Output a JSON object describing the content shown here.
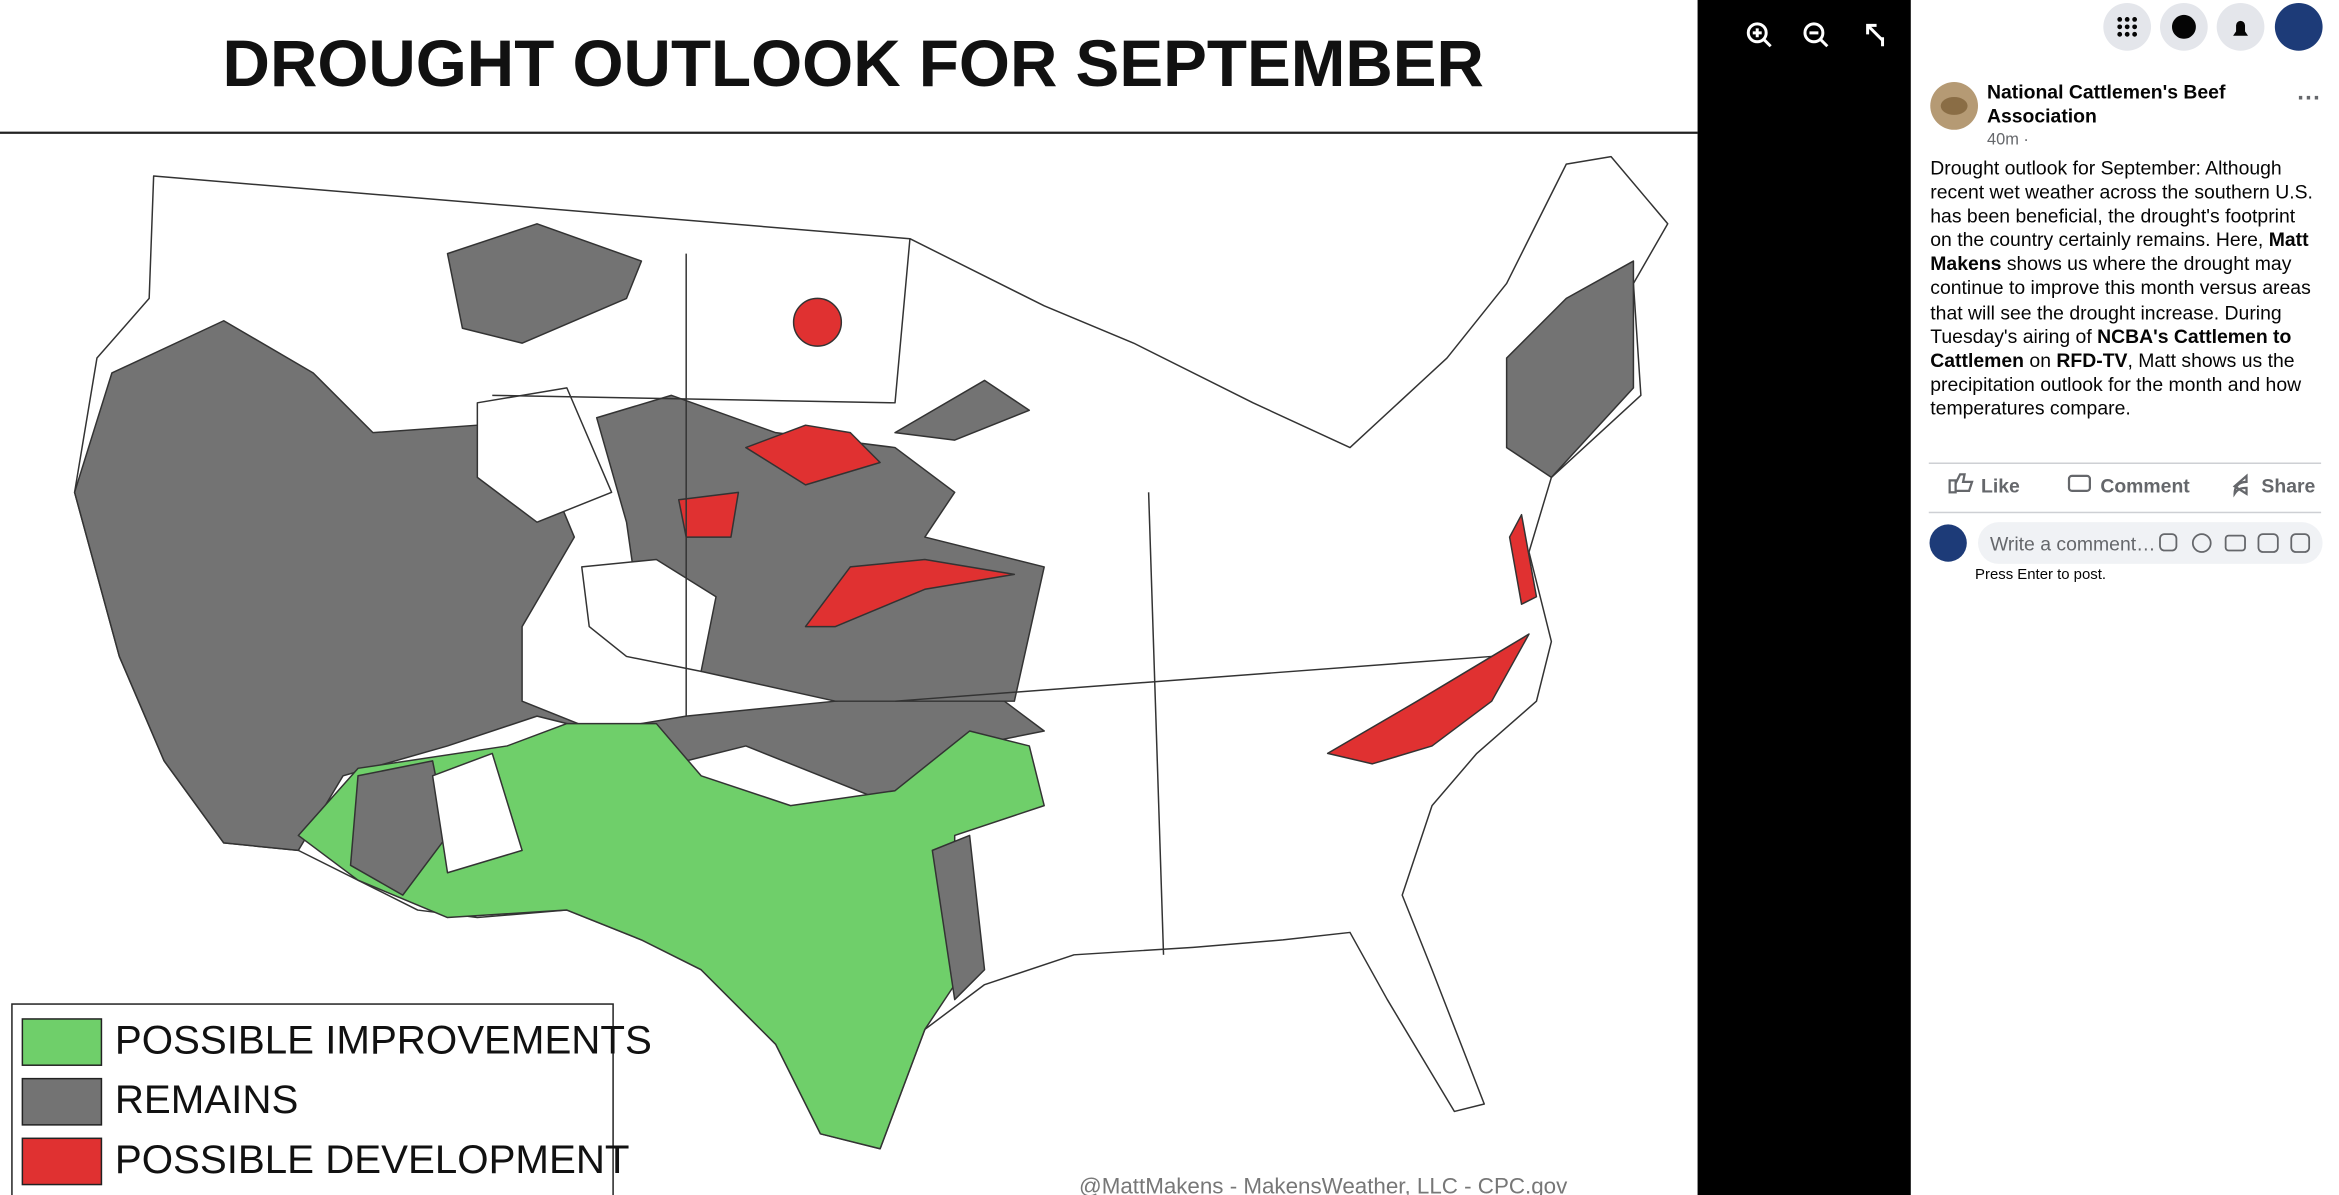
{
  "image": {
    "title": "DROUGHT OUTLOOK FOR SEPTEMBER",
    "legend": [
      "POSSIBLE IMPROVEMENTS",
      "REMAINS",
      "POSSIBLE DEVELOPMENT"
    ],
    "credit": "@MattMakens - MakensWeather, LLC - CPC.gov"
  },
  "post": {
    "author": "National Cattlemen's Beef Association",
    "time": "40m ·",
    "body": [
      {
        "text": "Drought outlook for September: Although recent wet weather across the southern U.S. has been beneficial, the drought's footprint on the country certainly remains. Here, ",
        "bold": false
      },
      {
        "text": "Matt Makens",
        "bold": true
      },
      {
        "text": " shows us where the drought may continue to improve this month versus areas that will see the drought increase. During Tuesday's airing of ",
        "bold": false
      },
      {
        "text": "NCBA's Cattlemen to Cattlemen",
        "bold": true
      },
      {
        "text": " on ",
        "bold": false
      },
      {
        "text": "RFD-TV",
        "bold": true
      },
      {
        "text": ", Matt shows us the precipitation outlook for the month and how temperatures compare.",
        "bold": false
      }
    ],
    "actions": [
      "Like",
      "Comment",
      "Share"
    ],
    "comment_placeholder": "Write a comment…",
    "comment_hint": "Press Enter to post."
  }
}
